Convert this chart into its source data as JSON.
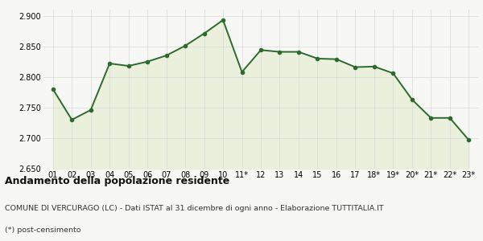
{
  "x_labels": [
    "01",
    "02",
    "03",
    "04",
    "05",
    "06",
    "07",
    "08",
    "09",
    "10",
    "11*",
    "12",
    "13",
    "14",
    "15",
    "16",
    "17",
    "18*",
    "19*",
    "20*",
    "21*",
    "22*",
    "23*"
  ],
  "y_values": [
    2780,
    2730,
    2746,
    2822,
    2818,
    2825,
    2835,
    2851,
    2871,
    2893,
    2808,
    2844,
    2841,
    2841,
    2830,
    2829,
    2816,
    2817,
    2806,
    2763,
    2733,
    2733,
    2697
  ],
  "line_color": "#2d6a2d",
  "fill_color": "#eaf0dc",
  "marker": "o",
  "marker_size": 3,
  "line_width": 1.4,
  "ylim": [
    2650,
    2910
  ],
  "yticks": [
    2650,
    2700,
    2750,
    2800,
    2850,
    2900
  ],
  "title": "Andamento della popolazione residente",
  "subtitle": "COMUNE DI VERCURAGO (LC) - Dati ISTAT al 31 dicembre di ogni anno - Elaborazione TUTTITALIA.IT",
  "footnote": "(*) post-censimento",
  "title_fontsize": 9,
  "subtitle_fontsize": 6.8,
  "footnote_fontsize": 6.8,
  "tick_fontsize": 7,
  "bg_color": "#f7f7f5",
  "grid_color": "#d8d8d8"
}
